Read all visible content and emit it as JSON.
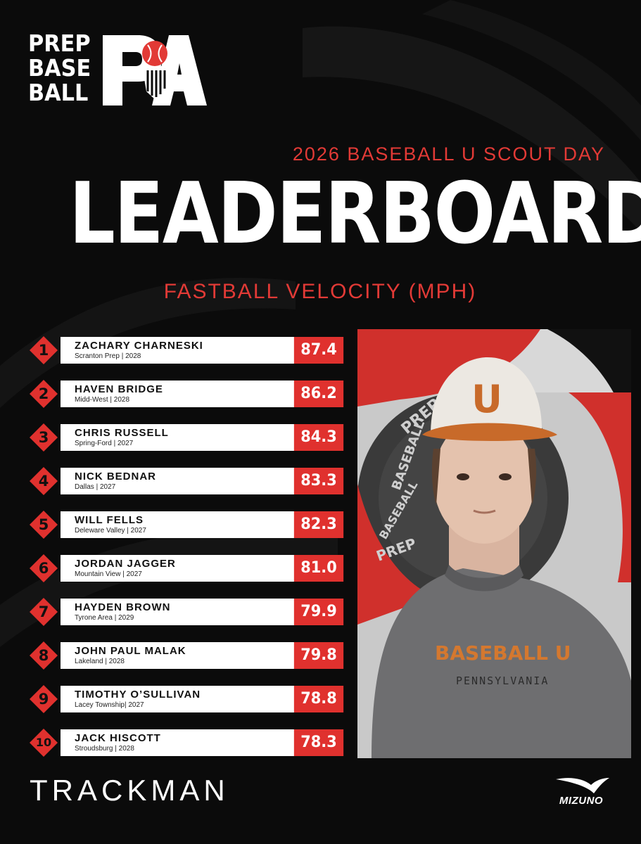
{
  "logo": {
    "words": [
      "PREP",
      "BASE",
      "BALL"
    ],
    "mark_letters": "PA"
  },
  "event_title": "2026 BASEBALL U SCOUT DAY",
  "board_title": "LEADERBOARD",
  "metric_title": "FASTBALL VELOCITY (MPH)",
  "players": [
    {
      "rank": "1",
      "name": "ZACHARY CHARNESKI",
      "sub": "Scranton Prep | 2028",
      "value": "87.4"
    },
    {
      "rank": "2",
      "name": "HAVEN BRIDGE",
      "sub": "Midd-West | 2028",
      "value": "86.2"
    },
    {
      "rank": "3",
      "name": "CHRIS RUSSELL",
      "sub": "Spring-Ford | 2027",
      "value": "84.3"
    },
    {
      "rank": "4",
      "name": "NICK BEDNAR",
      "sub": "Dallas | 2027",
      "value": "83.3"
    },
    {
      "rank": "5",
      "name": "WILL FELLS",
      "sub": "Deleware Valley | 2027",
      "value": "82.3"
    },
    {
      "rank": "6",
      "name": "JORDAN JAGGER",
      "sub": "Mountain View | 2027",
      "value": "81.0"
    },
    {
      "rank": "7",
      "name": "HAYDEN BROWN",
      "sub": "Tyrone Area | 2029",
      "value": "79.9"
    },
    {
      "rank": "8",
      "name": "JOHN PAUL MALAK",
      "sub": "Lakeland | 2028",
      "value": "79.8"
    },
    {
      "rank": "9",
      "name": "TIMOTHY O’SULLIVAN",
      "sub": "Lacey Township| 2027",
      "value": "78.8"
    },
    {
      "rank": "10",
      "name": "JACK HISCOTT",
      "sub": "Stroudsburg | 2028",
      "value": "78.3"
    }
  ],
  "photo": {
    "cap_letter": "U",
    "shirt_text": "BASEBALL U",
    "shirt_subtext": "PENNSYLVANIA",
    "banner_words": [
      "PREP",
      "BASEBALL",
      "PREP",
      "BASEBALL"
    ]
  },
  "sponsors": {
    "left": "TRACKMAN",
    "right": "MIZUNO"
  },
  "colors": {
    "accent_red": "#e23a36",
    "background": "#0b0b0b",
    "row_white": "#ffffff",
    "value_red": "#e0312e"
  }
}
